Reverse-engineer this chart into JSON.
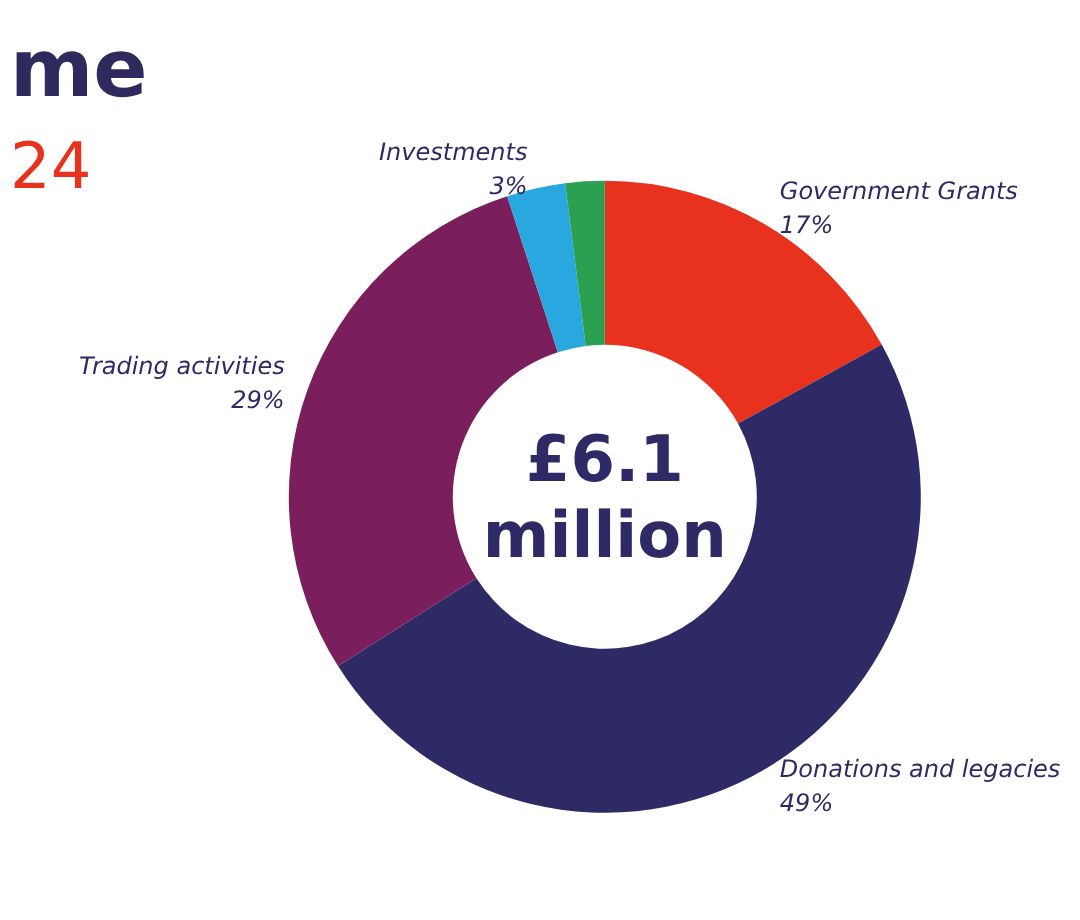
{
  "chart_data": {
    "type": "donut",
    "title": "me",
    "subtitle": "24",
    "categories": [
      "Government Grants",
      "Donations and legacies",
      "Trading activities",
      "Investments",
      null
    ],
    "values": [
      17,
      49,
      29,
      3,
      2
    ],
    "value_labels": [
      "17%",
      "49%",
      "29%",
      "3%",
      null
    ],
    "colors": [
      "#e8321e",
      "#2e2a66",
      "#7a1f5c",
      "#29a8e0",
      "#2aa050"
    ],
    "annotations": [
      "£6.1\nmillion"
    ],
    "legend": false
  }
}
